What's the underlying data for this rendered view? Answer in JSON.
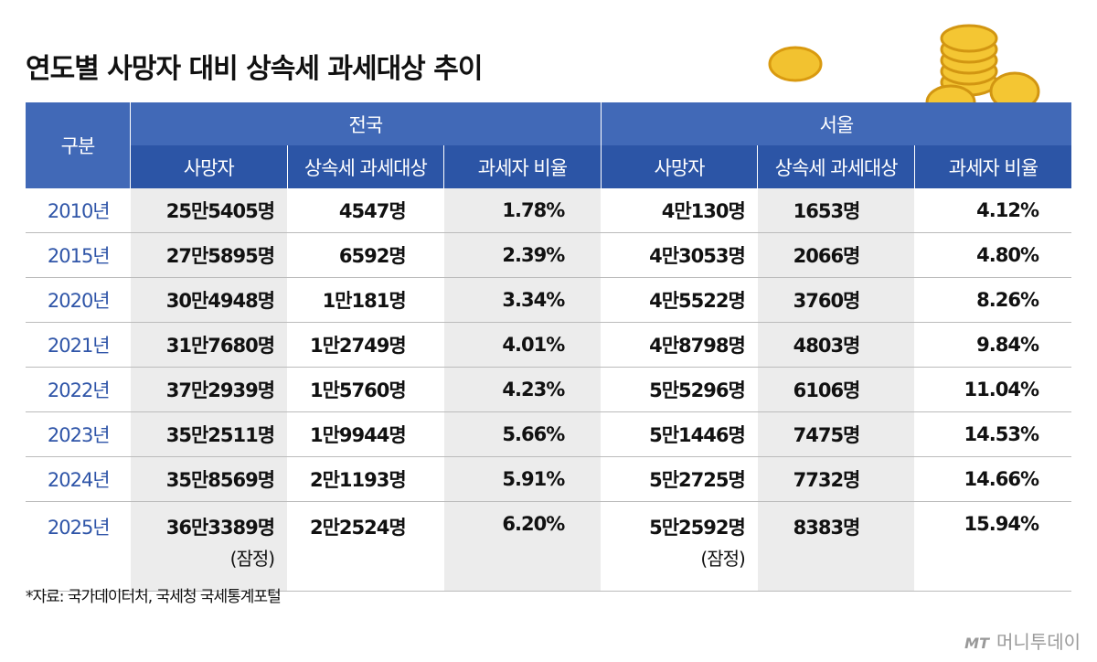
{
  "title": "연도별 사망자 대비 상속세 과세대상 추이",
  "table": {
    "corner": "구분",
    "groups": [
      "전국",
      "서울"
    ],
    "sub_headers": [
      "사망자",
      "상속세 과세대상",
      "과세자 비율",
      "사망자",
      "상속세 과세대상",
      "과세자 비율"
    ],
    "rows": [
      [
        "2010년",
        "25만5405명",
        "4547명",
        "1.78%",
        "4만130명",
        "1653명",
        "4.12%"
      ],
      [
        "2015년",
        "27만5895명",
        "6592명",
        "2.39%",
        "4만3053명",
        "2066명",
        "4.80%"
      ],
      [
        "2020년",
        "30만4948명",
        "1만181명",
        "3.34%",
        "4만5522명",
        "3760명",
        "8.26%"
      ],
      [
        "2021년",
        "31만7680명",
        "1만2749명",
        "4.01%",
        "4만8798명",
        "4803명",
        "9.84%"
      ],
      [
        "2022년",
        "37만2939명",
        "1만5760명",
        "4.23%",
        "5만5296명",
        "6106명",
        "11.04%"
      ],
      [
        "2023년",
        "35만2511명",
        "1만9944명",
        "5.66%",
        "5만1446명",
        "7475명",
        "14.53%"
      ],
      [
        "2024년",
        "35만8569명",
        "2만1193명",
        "5.91%",
        "5만2725명",
        "7732명",
        "14.66%"
      ],
      [
        "2025년",
        "36만3389명",
        "2만2524명",
        "6.20%",
        "5만2592명",
        "8383명",
        "15.94%"
      ]
    ],
    "last_row_notes": {
      "national_deaths": "(잠정)",
      "seoul_deaths": "(잠정)"
    }
  },
  "source": "*자료: 국가데이터처, 국세청 국세통계포털",
  "logo_mark": "MT",
  "logo": "머니투데이"
}
